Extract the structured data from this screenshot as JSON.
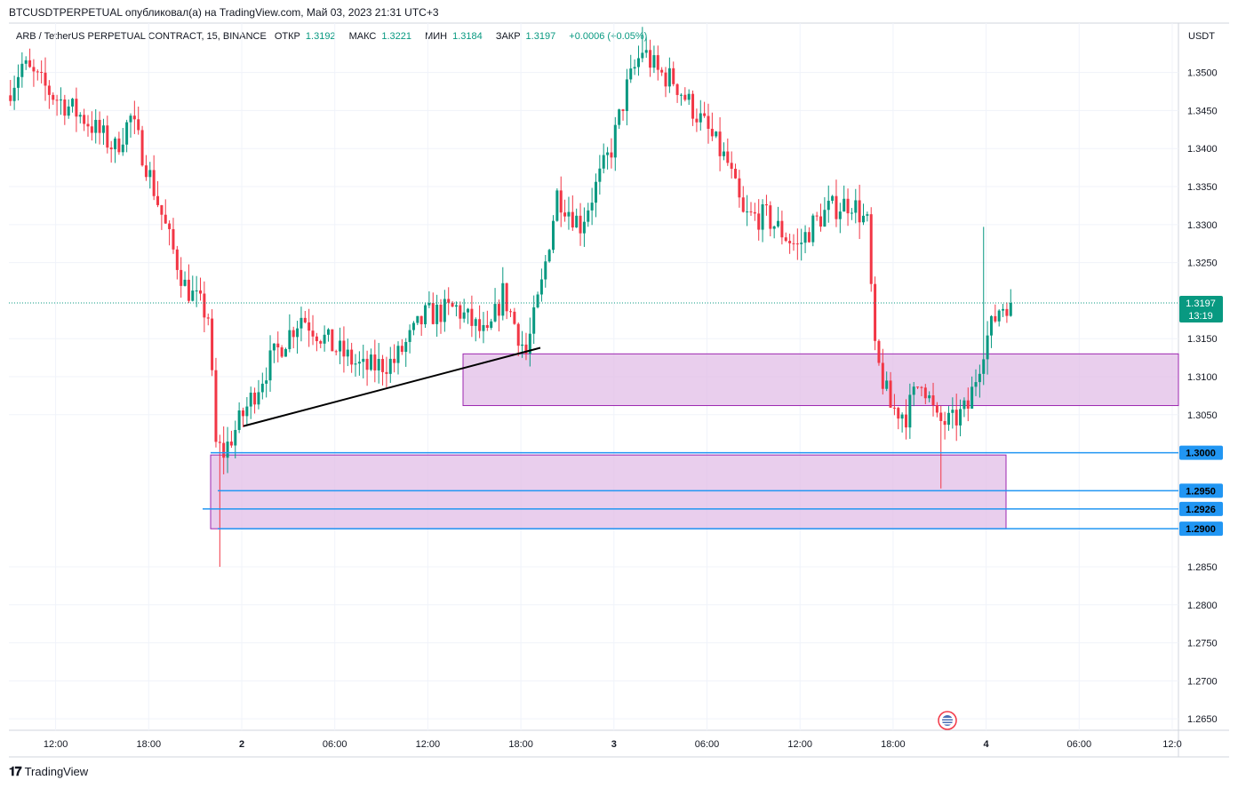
{
  "header": {
    "published": "BTCUSDTPERPETUAL опубликовал(а) на TradingView.com, Май 03, 2023 21:31 UTC+3"
  },
  "legend": {
    "symbol": "ARB / TetherUS PERPETUAL CONTRACT, 15, BINANCE",
    "open_label": "ОТКР",
    "open": "1.3192",
    "high_label": "МАКС",
    "high": "1.3221",
    "low_label": "МИН",
    "low": "1.3184",
    "close_label": "ЗАКР",
    "close": "1.3197",
    "change": "+0.0006 (+0.05%)"
  },
  "footer": {
    "brand": "TradingView",
    "logo": "tv-logo-icon"
  },
  "colors": {
    "up": "#089981",
    "down": "#f23645",
    "zone": "#e1bee7",
    "zone_border": "#9c27b0",
    "hline": "#2196f3",
    "price_tag": "#089981"
  },
  "chart_data": {
    "type": "candlestick",
    "currency": "USDT",
    "interval": "15",
    "ylim": [
      1.2635,
      1.3565
    ],
    "y_ticks": [
      "1.3500",
      "1.3450",
      "1.3400",
      "1.3350",
      "1.3300",
      "1.3250",
      "1.3150",
      "1.3100",
      "1.3050",
      "1.2850",
      "1.2800",
      "1.2750",
      "1.2700",
      "1.2650"
    ],
    "x_ticks": [
      "12:00",
      "18:00",
      "2",
      "06:00",
      "12:00",
      "18:00",
      "3",
      "06:00",
      "12:00",
      "18:00",
      "4",
      "06:00",
      "12:0"
    ],
    "current_price": {
      "value": "1.3197",
      "countdown": "13:19"
    },
    "level_tags": [
      "1.3000",
      "1.2950",
      "1.2926",
      "1.2900"
    ],
    "candles_keypoints": [
      {
        "t": "May 1 ~09:00",
        "price": 1.347
      },
      {
        "t": "May 1 ~10:00",
        "price": 1.352
      },
      {
        "t": "May 1 ~18:00",
        "price": 1.325
      },
      {
        "t": "May 1 ~22:00",
        "price": 1.317
      },
      {
        "t": "May 1 ~22:40",
        "low": 1.285
      },
      {
        "t": "May 2 ~08:00",
        "price": 1.318
      },
      {
        "t": "May 2 ~16:00",
        "price": 1.322
      },
      {
        "t": "May 2 ~17:30",
        "price": 1.313
      },
      {
        "t": "May 3 ~00:00",
        "price": 1.345
      },
      {
        "t": "May 3 ~01:00",
        "high": 1.356
      },
      {
        "t": "May 3 ~06:00",
        "price": 1.33
      },
      {
        "t": "May 3 ~12:00",
        "price": 1.334
      },
      {
        "t": "May 3 ~15:00",
        "price": 1.31
      },
      {
        "t": "May 3 ~18:00",
        "low": 1.295
      },
      {
        "t": "May 3 ~21:30",
        "close": 1.3197
      }
    ],
    "zones": [
      {
        "name": "upper-zone",
        "from": "May 2 ~14:00",
        "to": "May 4 ~06:00",
        "low": 1.3062,
        "high": 1.313
      },
      {
        "name": "lower-zone",
        "from": "May 1 ~22:00",
        "to": "May 4 ~01:00",
        "low": 1.29,
        "high": 1.2997
      }
    ],
    "trendline": {
      "from": {
        "t": "May 2 ~00:00",
        "price": 1.3035
      },
      "to": {
        "t": "May 2 ~19:00",
        "price": 1.3138
      }
    },
    "horizontal_levels": [
      1.3,
      1.295,
      1.2926,
      1.29
    ]
  }
}
